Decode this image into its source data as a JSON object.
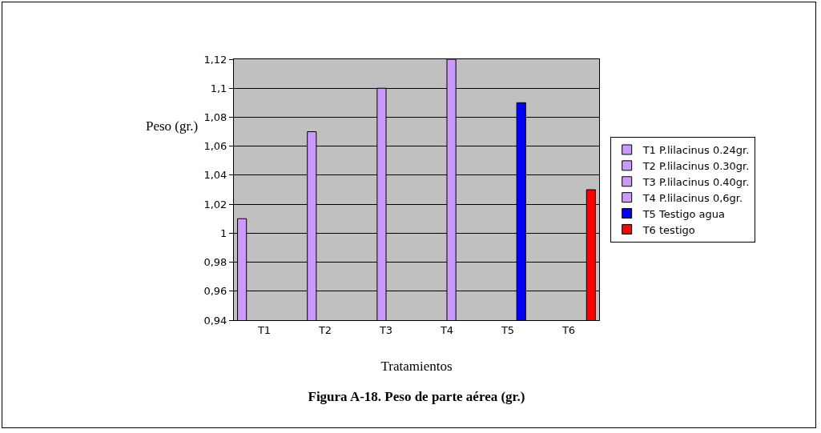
{
  "chart_data": {
    "type": "bar",
    "title": "Figura A-18. Peso de parte aérea (gr.)",
    "xlabel": "Tratamientos",
    "ylabel": "Peso (gr.)",
    "categories": [
      "T1",
      "T2",
      "T3",
      "T4",
      "T5",
      "T6"
    ],
    "series": [
      {
        "name": "T1 P.lilacinus 0.24gr.",
        "color": "#cc99ff",
        "values": [
          1.01,
          null,
          null,
          null,
          null,
          null
        ]
      },
      {
        "name": "T2 P.lilacinus 0.30gr.",
        "color": "#cc99ff",
        "values": [
          null,
          1.07,
          null,
          null,
          null,
          null
        ]
      },
      {
        "name": "T3 P.lilacinus 0.40gr.",
        "color": "#cc99ff",
        "values": [
          null,
          null,
          1.1,
          null,
          null,
          null
        ]
      },
      {
        "name": "T4 P.lilacinus 0,6gr.",
        "color": "#cc99ff",
        "values": [
          null,
          null,
          null,
          1.12,
          null,
          null
        ]
      },
      {
        "name": "T5 Testigo agua",
        "color": "#0000ff",
        "values": [
          null,
          null,
          null,
          null,
          1.09,
          null
        ]
      },
      {
        "name": "T6 testigo",
        "color": "#ff0000",
        "values": [
          null,
          null,
          null,
          null,
          null,
          1.03
        ]
      }
    ],
    "ylim": [
      0.94,
      1.12
    ],
    "yticks": [
      {
        "value": 0.94,
        "label": "0,94"
      },
      {
        "value": 0.96,
        "label": "0,96"
      },
      {
        "value": 0.98,
        "label": "0,98"
      },
      {
        "value": 1,
        "label": "1"
      },
      {
        "value": 1.02,
        "label": "1,02"
      },
      {
        "value": 1.04,
        "label": "1,04"
      },
      {
        "value": 1.06,
        "label": "1,06"
      },
      {
        "value": 1.08,
        "label": "1,08"
      },
      {
        "value": 1.1,
        "label": "1,1"
      },
      {
        "value": 1.12,
        "label": "1,12"
      }
    ],
    "grid": "y",
    "legend": "right"
  }
}
